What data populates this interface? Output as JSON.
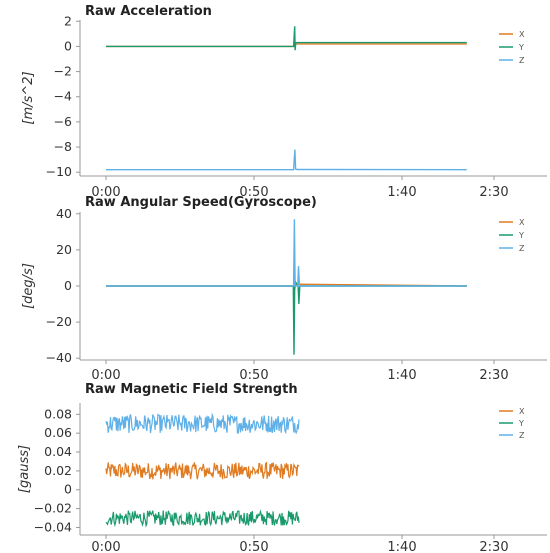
{
  "colors": {
    "x": "#e07b22",
    "y": "#1a9a6c",
    "z": "#5fb0e8",
    "axis": "#999999"
  },
  "chart_data": [
    {
      "type": "line",
      "title": "Raw Acceleration",
      "ylabel": "[m/s^2]",
      "xlabel": "",
      "x_ticks": [
        "0:00",
        "0:50",
        "1:40",
        "2:30"
      ],
      "y_ticks": [
        "2",
        "0",
        "−2",
        "−4",
        "−6",
        "−8",
        "−10"
      ],
      "x_range_seconds": [
        0,
        200
      ],
      "ylim": [
        -10.3,
        2.1
      ],
      "legend_position": "top-right",
      "series": [
        {
          "name": "X",
          "segments": [
            {
              "t": [
                0,
                100,
                104.5
              ],
              "v": [
                0.0,
                0.0,
                0.0
              ]
            },
            {
              "t": [
                105,
                200
              ],
              "v": [
                0.2,
                0.2
              ]
            }
          ]
        },
        {
          "name": "Y",
          "segments": [
            {
              "t": [
                0,
                104,
                104.6,
                104.8,
                105.2,
                106,
                200
              ],
              "v": [
                0.0,
                0.0,
                1.6,
                -0.3,
                0.3,
                0.3,
                0.3
              ]
            }
          ]
        },
        {
          "name": "Z",
          "segments": [
            {
              "t": [
                0,
                104,
                104.7,
                105.1,
                106,
                200
              ],
              "v": [
                -9.8,
                -9.8,
                -8.2,
                -9.75,
                -9.78,
                -9.8
              ]
            }
          ]
        }
      ]
    },
    {
      "type": "line",
      "title": "Raw Angular Speed(Gyroscope)",
      "ylabel": "[deg/s]",
      "xlabel": "",
      "x_ticks": [
        "0:00",
        "0:50",
        "1:40",
        "2:30"
      ],
      "y_ticks": [
        "40",
        "20",
        "0",
        "−20",
        "−40"
      ],
      "x_range_seconds": [
        0,
        200
      ],
      "ylim": [
        -41,
        41
      ],
      "legend_position": "top-right",
      "series": [
        {
          "name": "X",
          "segments": [
            {
              "t": [
                0,
                104,
                104.6,
                105,
                200
              ],
              "v": [
                0,
                0,
                -2,
                1,
                0
              ]
            }
          ]
        },
        {
          "name": "Y",
          "segments": [
            {
              "t": [
                0,
                103.8,
                104.2,
                104.6,
                105.2,
                106.5,
                106.9,
                107.4,
                200
              ],
              "v": [
                0,
                0,
                -38,
                0,
                2,
                0,
                -10,
                0,
                0
              ]
            }
          ]
        },
        {
          "name": "Z",
          "segments": [
            {
              "t": [
                0,
                104,
                104.4,
                104.8,
                106.3,
                106.7,
                107.2,
                200
              ],
              "v": [
                0,
                0,
                37,
                0,
                0,
                11,
                0,
                0
              ]
            }
          ]
        }
      ]
    },
    {
      "type": "line",
      "title": "Raw Magnetic Field Strength",
      "ylabel": "[gauss]",
      "xlabel": "",
      "x_ticks": [
        "0:00",
        "0:50",
        "1:40",
        "2:30"
      ],
      "y_ticks": [
        "0.08",
        "0.06",
        "0.04",
        "0.02",
        "0",
        "−0.02",
        "−0.04"
      ],
      "x_range_seconds": [
        0,
        200
      ],
      "ylim": [
        -0.048,
        0.092
      ],
      "legend_position": "top-right",
      "noisy_series": [
        {
          "name": "X",
          "t_range": [
            0,
            107
          ],
          "mean": 0.02,
          "amplitude": 0.009
        },
        {
          "name": "Y",
          "t_range": [
            0,
            107
          ],
          "mean": -0.03,
          "amplitude": 0.008
        },
        {
          "name": "Z",
          "t_range": [
            0,
            107
          ],
          "mean": 0.07,
          "amplitude": 0.01
        }
      ]
    }
  ]
}
